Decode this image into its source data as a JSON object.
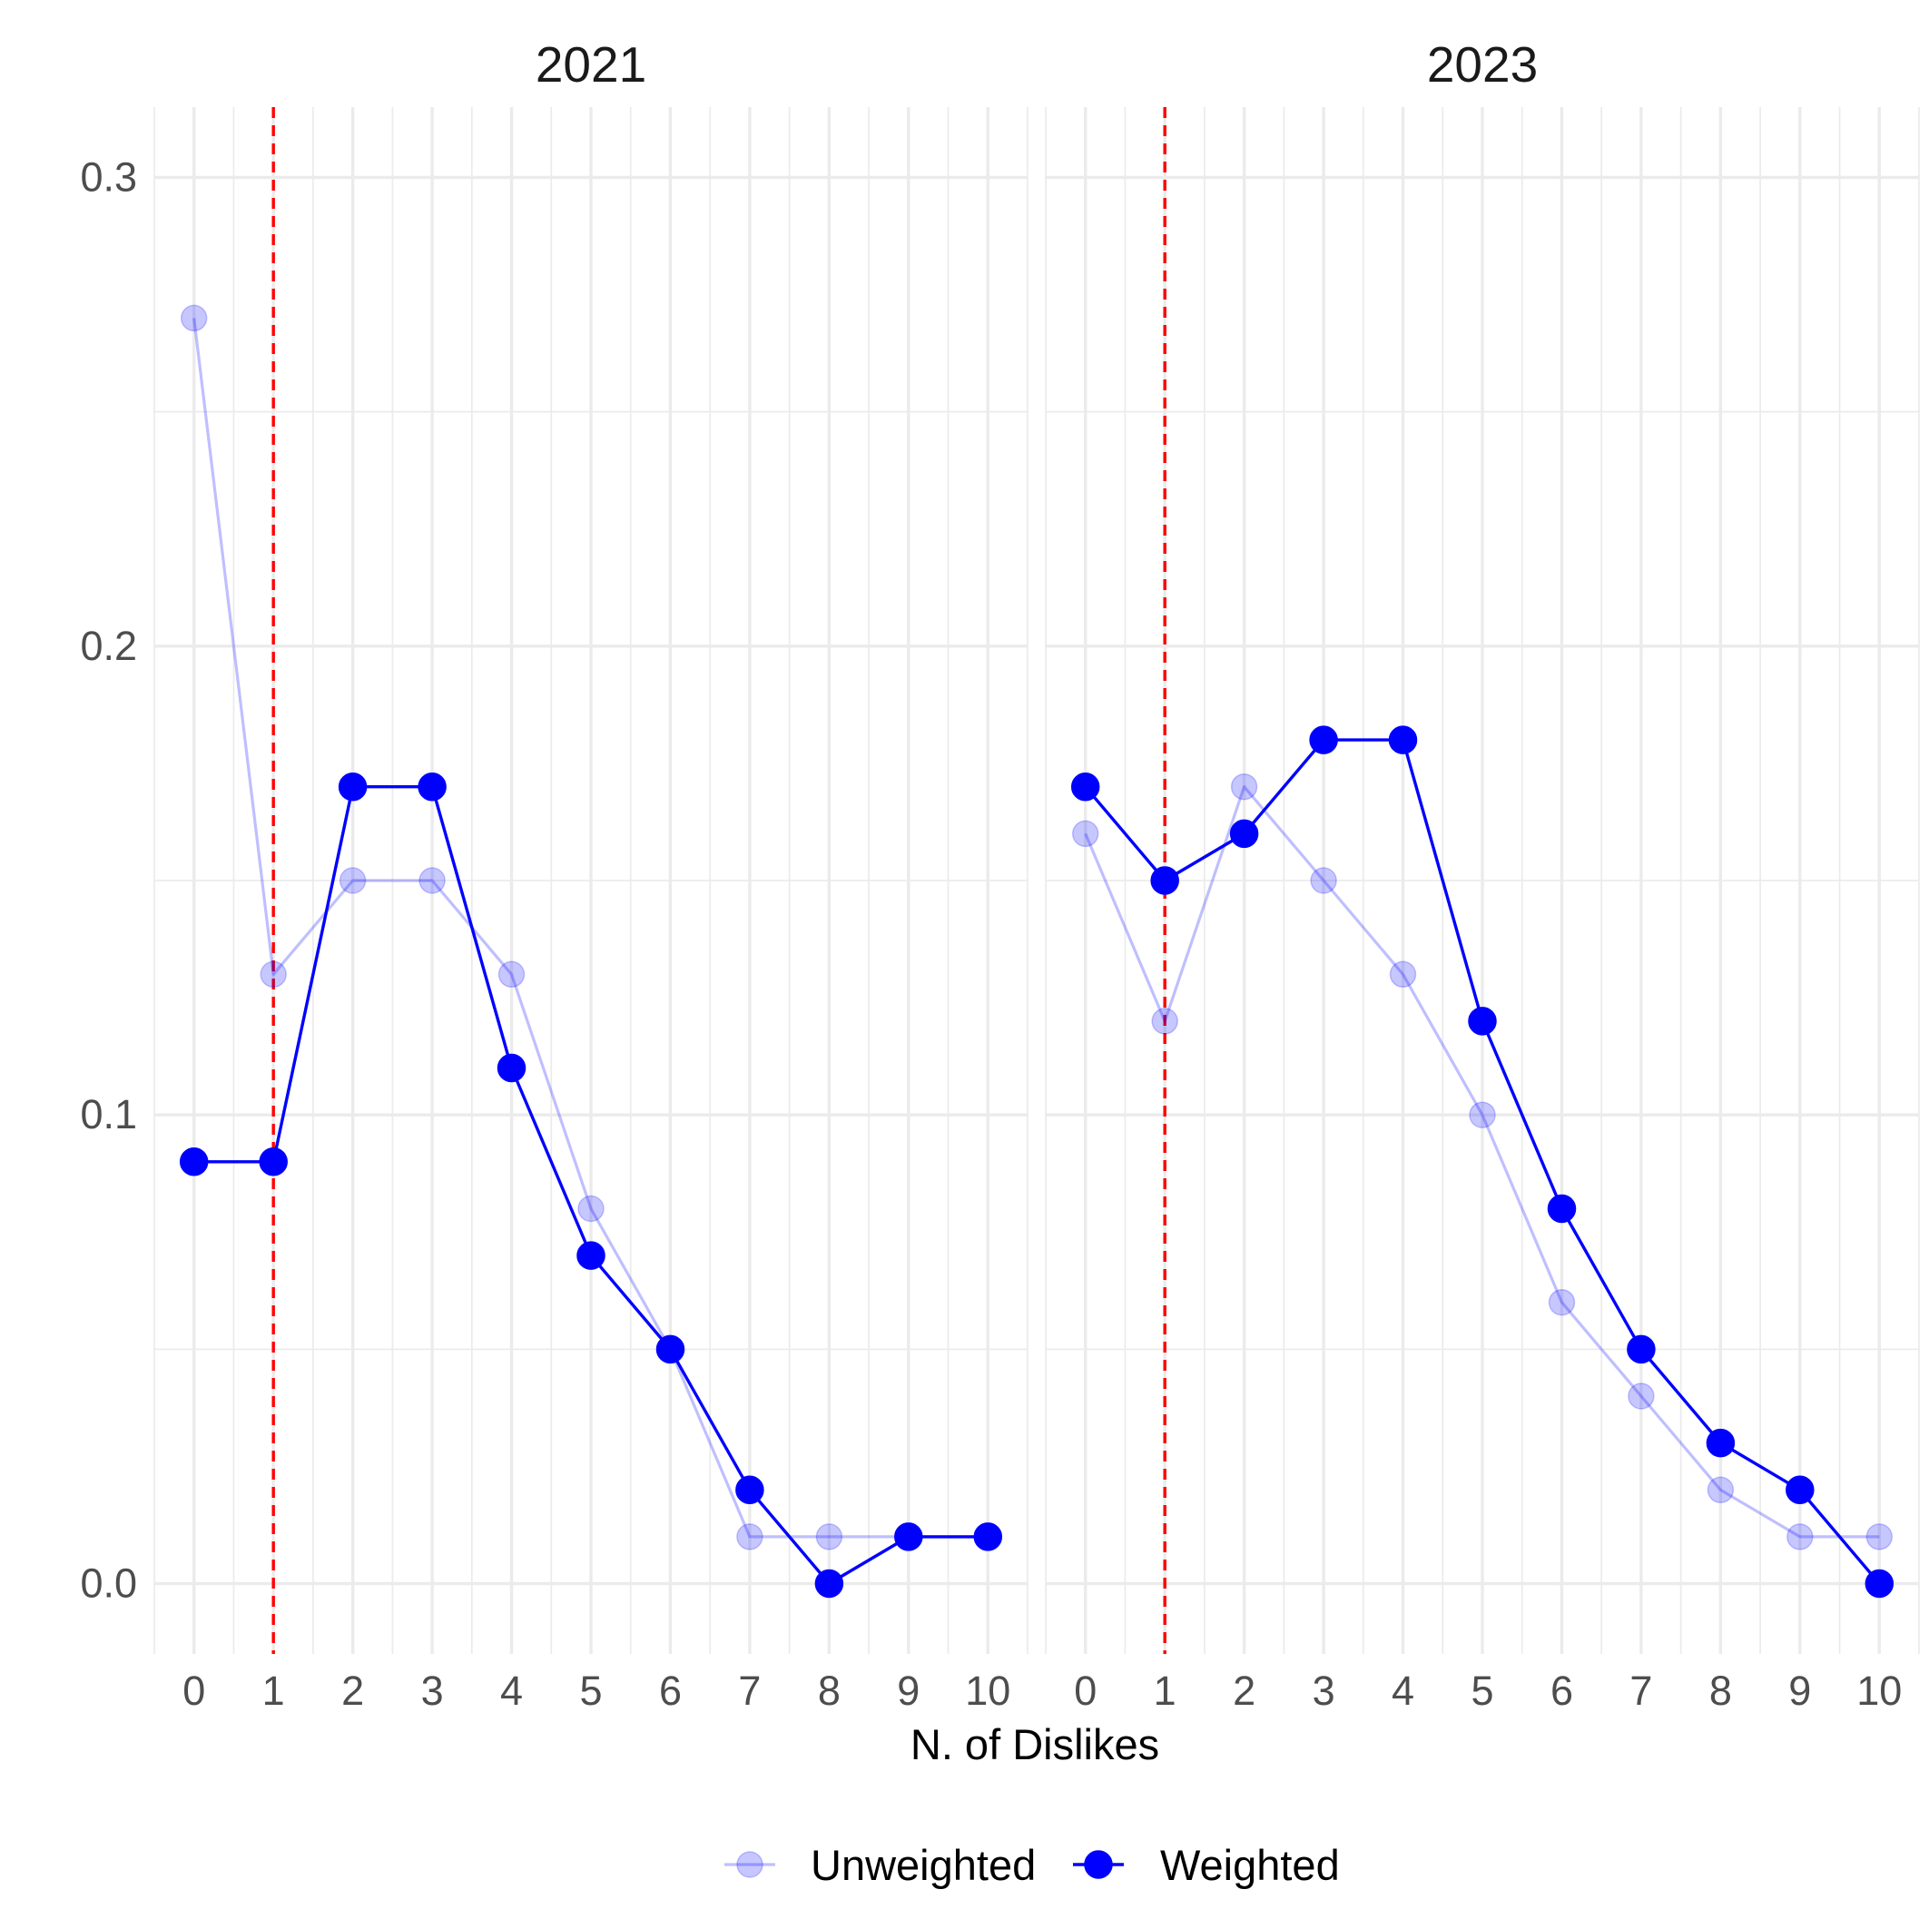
{
  "chart_data": {
    "type": "line",
    "facet_by": "year",
    "facets": [
      {
        "label": "2021",
        "series": [
          {
            "name": "Unweighted",
            "x": [
              0,
              1,
              2,
              3,
              4,
              5,
              6,
              7,
              8,
              9,
              10
            ],
            "y": [
              0.27,
              0.13,
              0.15,
              0.15,
              0.13,
              0.08,
              0.05,
              0.01,
              0.01,
              0.01,
              0.01
            ]
          },
          {
            "name": "Weighted",
            "x": [
              0,
              1,
              2,
              3,
              4,
              5,
              6,
              7,
              8,
              9,
              10
            ],
            "y": [
              0.09,
              0.09,
              0.17,
              0.17,
              0.11,
              0.07,
              0.05,
              0.02,
              0.0,
              0.01,
              0.01
            ]
          }
        ],
        "reference_line_x": 1
      },
      {
        "label": "2023",
        "series": [
          {
            "name": "Unweighted",
            "x": [
              0,
              1,
              2,
              3,
              4,
              5,
              6,
              7,
              8,
              9,
              10
            ],
            "y": [
              0.16,
              0.12,
              0.17,
              0.15,
              0.13,
              0.1,
              0.06,
              0.04,
              0.02,
              0.01,
              0.01
            ]
          },
          {
            "name": "Weighted",
            "x": [
              0,
              1,
              2,
              3,
              4,
              5,
              6,
              7,
              8,
              9,
              10
            ],
            "y": [
              0.17,
              0.15,
              0.16,
              0.18,
              0.18,
              0.12,
              0.08,
              0.05,
              0.03,
              0.02,
              0.0
            ]
          }
        ],
        "reference_line_x": 1
      }
    ],
    "xlabel": "N. of Dislikes",
    "ylabel": "",
    "x_ticks": [
      "0",
      "1",
      "2",
      "3",
      "4",
      "5",
      "6",
      "7",
      "8",
      "9",
      "10"
    ],
    "y_ticks": [
      "0.0",
      "0.1",
      "0.2",
      "0.3"
    ],
    "y_tick_values": [
      0,
      0.1,
      0.2,
      0.3
    ],
    "xlim": [
      -0.5,
      10.5
    ],
    "ylim": [
      -0.015,
      0.315
    ],
    "grid": true,
    "legend": {
      "position": "bottom",
      "entries": [
        {
          "name": "Unweighted",
          "label": "Unweighted"
        },
        {
          "name": "Weighted",
          "label": "Weighted"
        }
      ]
    },
    "colors": {
      "Unweighted": "#0000ff",
      "Weighted": "#0000ff",
      "reference_line": "#ff0000"
    }
  }
}
